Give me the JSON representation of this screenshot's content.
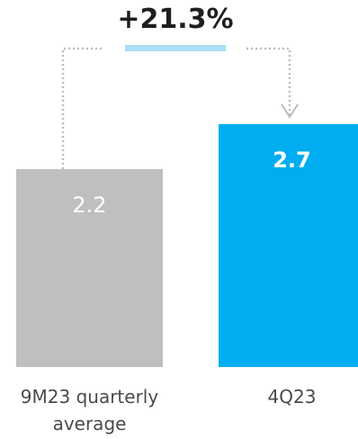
{
  "chart_data": {
    "type": "bar",
    "title": "",
    "xlabel": "",
    "ylabel": "",
    "categories": [
      "9M23 quarterly average",
      "4Q23"
    ],
    "category_lines": [
      [
        "9M23 quarterly",
        "average"
      ],
      [
        "4Q23"
      ]
    ],
    "values": [
      2.2,
      2.7
    ],
    "value_labels": [
      "2.2",
      "2.7"
    ],
    "ylim": [
      0,
      2.7
    ],
    "colors": [
      "#bfbfbf",
      "#00aeef"
    ],
    "annotation": {
      "text": "+21.3%",
      "underline_color": "#a9def3",
      "connector_color": "#bdbdbd",
      "from": "9M23 quarterly average",
      "to": "4Q23"
    },
    "grid": false,
    "legend": "none"
  }
}
